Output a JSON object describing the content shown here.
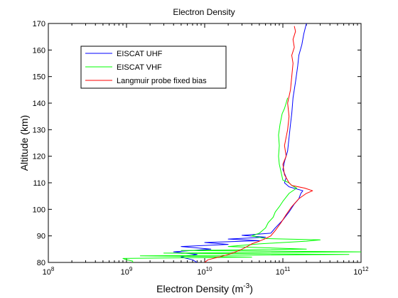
{
  "chart_data": {
    "type": "line",
    "title": "Electron Density",
    "xlabel_base": "Electron Density (m",
    "xlabel_exp": "-3",
    "xlabel_close": ")",
    "ylabel": "Altitude (km)",
    "x_scale": "log",
    "xlim": [
      100000000,
      1000000000000
    ],
    "ylim": [
      80,
      170
    ],
    "x_ticks": [
      {
        "value": 100000000,
        "base": "10",
        "exp": "8"
      },
      {
        "value": 1000000000,
        "base": "10",
        "exp": "9"
      },
      {
        "value": 10000000000,
        "base": "10",
        "exp": "10"
      },
      {
        "value": 100000000000,
        "base": "10",
        "exp": "11"
      },
      {
        "value": 1000000000000,
        "base": "10",
        "exp": "12"
      }
    ],
    "y_ticks": [
      "80",
      "90",
      "100",
      "110",
      "120",
      "130",
      "140",
      "150",
      "160",
      "170"
    ],
    "grid": false,
    "legend_position": "top-left",
    "series": [
      {
        "name": "EISCAT UHF",
        "color": "#0000ff",
        "points": [
          [
            8000000000.0,
            80
          ],
          [
            7000000000.0,
            81
          ],
          [
            5000000000.0,
            82
          ],
          [
            8000000000.0,
            83
          ],
          [
            4000000000.0,
            84
          ],
          [
            12000000000.0,
            85
          ],
          [
            5000000000.0,
            86
          ],
          [
            20000000000.0,
            86.8
          ],
          [
            10000000000.0,
            87.5
          ],
          [
            50000000000.0,
            88.2
          ],
          [
            20000000000.0,
            88.8
          ],
          [
            60000000000.0,
            89.5
          ],
          [
            30000000000.0,
            90.2
          ],
          [
            70000000000.0,
            91
          ],
          [
            80000000000.0,
            93
          ],
          [
            100000000000.0,
            96
          ],
          [
            120000000000.0,
            99
          ],
          [
            140000000000.0,
            102
          ],
          [
            160000000000.0,
            104
          ],
          [
            170000000000.0,
            106
          ],
          [
            180000000000.0,
            107
          ],
          [
            120000000000.0,
            108.5
          ],
          [
            105000000000.0,
            110
          ],
          [
            110000000000.0,
            112
          ],
          [
            100000000000.0,
            115
          ],
          [
            105000000000.0,
            118
          ],
          [
            115000000000.0,
            122
          ],
          [
            120000000000.0,
            127
          ],
          [
            125000000000.0,
            132
          ],
          [
            130000000000.0,
            136
          ],
          [
            135000000000.0,
            142
          ],
          [
            145000000000.0,
            148
          ],
          [
            155000000000.0,
            154
          ],
          [
            160000000000.0,
            158
          ],
          [
            175000000000.0,
            162
          ],
          [
            185000000000.0,
            166
          ],
          [
            200000000000.0,
            170
          ]
        ]
      },
      {
        "name": "EISCAT VHF",
        "color": "#00ff00",
        "points": [
          [
            1200000000.0,
            80
          ],
          [
            1200000000.0,
            80.5
          ],
          [
            1000000000.0,
            81
          ],
          [
            900000000.0,
            81.5
          ],
          [
            40000000000.0,
            82
          ],
          [
            1500000000.0,
            82.5
          ],
          [
            700000000000.0,
            83
          ],
          [
            3000000000.0,
            83.5
          ],
          [
            1000000000000.0,
            84
          ],
          [
            5000000000.0,
            84.5
          ],
          [
            200000000000.0,
            85
          ],
          [
            20000000000.0,
            86
          ],
          [
            50000000000.0,
            87
          ],
          [
            100000000000.0,
            87.5
          ],
          [
            200000000000.0,
            88
          ],
          [
            300000000000.0,
            88.5
          ],
          [
            60000000000.0,
            89
          ],
          [
            40000000000.0,
            90
          ],
          [
            50000000000.0,
            91
          ],
          [
            60000000000.0,
            93
          ],
          [
            65000000000.0,
            95
          ],
          [
            75000000000.0,
            97
          ],
          [
            80000000000.0,
            99
          ],
          [
            90000000000.0,
            101
          ],
          [
            100000000000.0,
            103
          ],
          [
            120000000000.0,
            106
          ],
          [
            150000000000.0,
            108
          ],
          [
            130000000000.0,
            109
          ],
          [
            120000000000.0,
            110
          ],
          [
            100000000000.0,
            111
          ],
          [
            95000000000.0,
            114
          ],
          [
            90000000000.0,
            117
          ],
          [
            88000000000.0,
            120
          ],
          [
            90000000000.0,
            124
          ],
          [
            88000000000.0,
            128
          ],
          [
            92000000000.0,
            132
          ],
          [
            98000000000.0,
            136
          ],
          [
            105000000000.0,
            138
          ],
          [
            110000000000.0,
            140
          ],
          [
            115000000000.0,
            142
          ]
        ]
      },
      {
        "name": "Langmuir probe fixed bias",
        "color": "#ff0000",
        "points": [
          [
            10000000000.0,
            80
          ],
          [
            11000000000.0,
            81
          ],
          [
            15000000000.0,
            82
          ],
          [
            20000000000.0,
            83
          ],
          [
            25000000000.0,
            84
          ],
          [
            30000000000.0,
            85
          ],
          [
            35000000000.0,
            86
          ],
          [
            40000000000.0,
            87
          ],
          [
            50000000000.0,
            88
          ],
          [
            60000000000.0,
            89
          ],
          [
            70000000000.0,
            90
          ],
          [
            80000000000.0,
            92
          ],
          [
            95000000000.0,
            95
          ],
          [
            110000000000.0,
            98
          ],
          [
            130000000000.0,
            101
          ],
          [
            160000000000.0,
            104
          ],
          [
            200000000000.0,
            106
          ],
          [
            240000000000.0,
            107
          ],
          [
            190000000000.0,
            108
          ],
          [
            130000000000.0,
            109
          ],
          [
            120000000000.0,
            110
          ],
          [
            105000000000.0,
            113
          ],
          [
            100000000000.0,
            117
          ],
          [
            110000000000.0,
            120
          ],
          [
            105000000000.0,
            124
          ],
          [
            115000000000.0,
            130
          ],
          [
            120000000000.0,
            135
          ],
          [
            115000000000.0,
            140
          ],
          [
            125000000000.0,
            145
          ],
          [
            130000000000.0,
            150
          ],
          [
            135000000000.0,
            155
          ],
          [
            130000000000.0,
            158
          ],
          [
            140000000000.0,
            161
          ],
          [
            135000000000.0,
            164
          ],
          [
            145000000000.0,
            167
          ],
          [
            140000000000.0,
            169
          ]
        ]
      }
    ]
  }
}
